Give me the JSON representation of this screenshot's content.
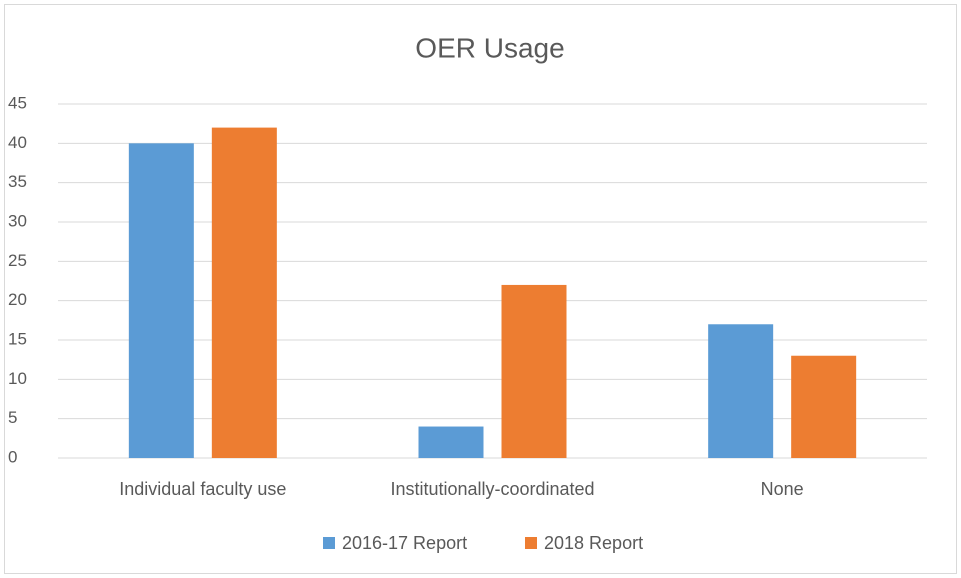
{
  "chart_data": {
    "type": "bar",
    "title": "OER Usage",
    "categories": [
      "Individual faculty use",
      "Institutionally-coordinated",
      "None"
    ],
    "series": [
      {
        "name": "2016-17 Report",
        "color": "#5b9bd5",
        "values": [
          40,
          4,
          17
        ]
      },
      {
        "name": "2018 Report",
        "color": "#ed7d31",
        "values": [
          42,
          22,
          13
        ]
      }
    ],
    "ylim": [
      0,
      45
    ],
    "yticks": [
      0,
      5,
      10,
      15,
      20,
      25,
      30,
      35,
      40,
      45
    ],
    "grid": true,
    "legend": "bottom"
  }
}
